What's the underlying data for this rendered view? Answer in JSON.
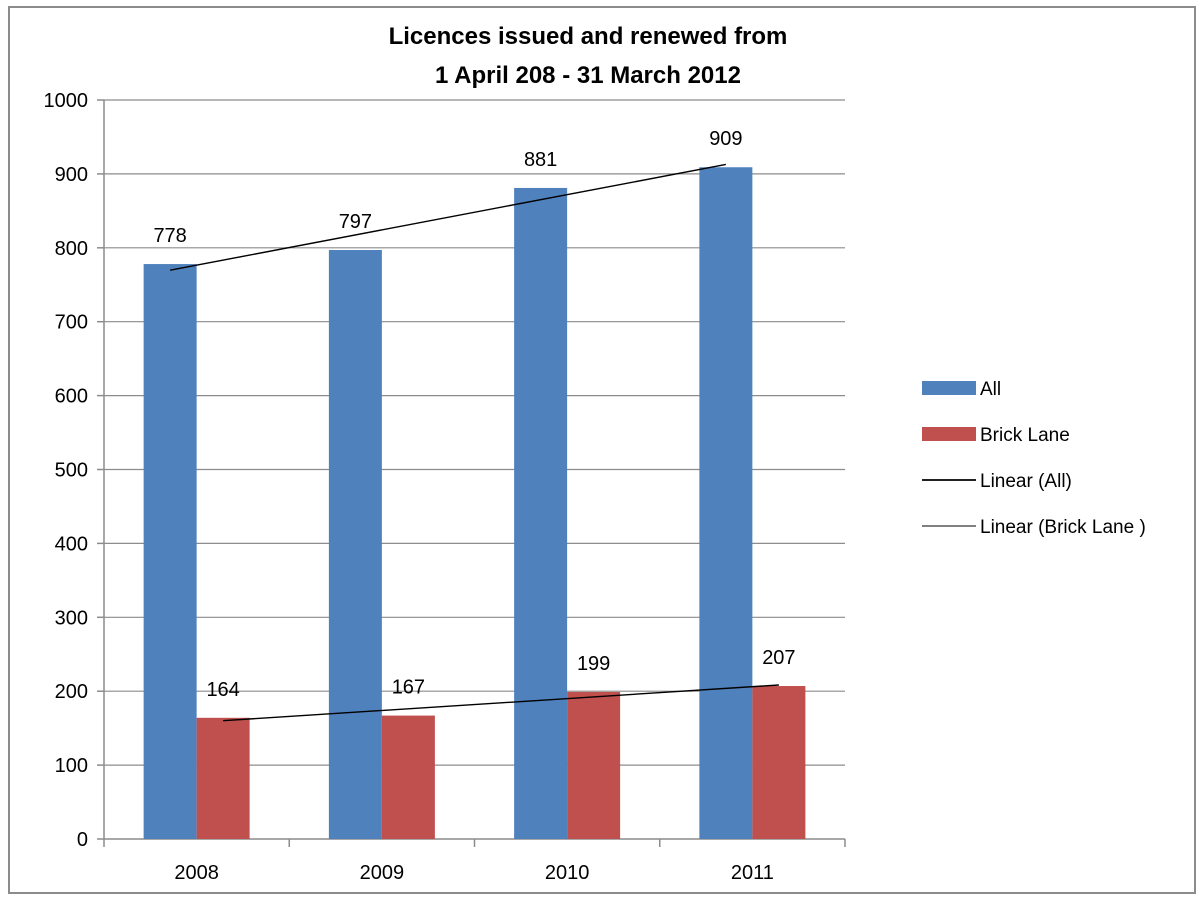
{
  "chart_data": {
    "type": "bar",
    "title_lines": [
      "Licences issued and renewed from",
      "1 April 208 - 31 March 2012"
    ],
    "xlabel": "",
    "ylabel": "",
    "categories": [
      "2008",
      "2009",
      "2010",
      "2011"
    ],
    "ylim": [
      0,
      1000
    ],
    "yticks": [
      0,
      100,
      200,
      300,
      400,
      500,
      600,
      700,
      800,
      900,
      1000
    ],
    "grid": true,
    "legend_position": "right",
    "series": [
      {
        "name": "All",
        "values": [
          778,
          797,
          881,
          909
        ],
        "color": "#4f81bd"
      },
      {
        "name": "Brick Lane",
        "values": [
          164,
          167,
          199,
          207
        ],
        "color": "#c0504d"
      }
    ],
    "trendlines": [
      {
        "name": "Linear (All)",
        "series": "All",
        "type": "linear",
        "color": "#000000"
      },
      {
        "name": "Linear (Brick Lane )",
        "series": "Brick Lane",
        "type": "linear",
        "color": "#000000"
      }
    ]
  }
}
